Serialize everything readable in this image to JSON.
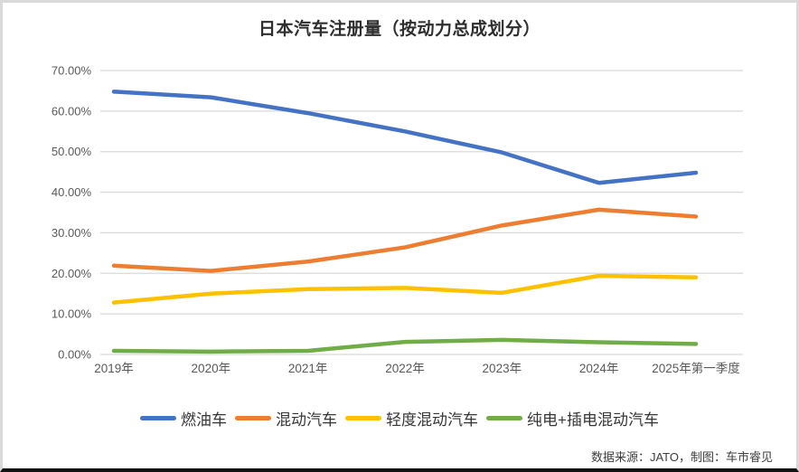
{
  "title": "日本汽车注册量（按动力总成划分）",
  "source_note": "数据来源：JATO，制图：车市睿见",
  "colors": {
    "grid": "#d9d9d9",
    "axis_text": "#595959",
    "title_text": "#2e2e2e",
    "frame_border": "#d9d9d9",
    "bottom_bar": "#111111"
  },
  "chart_data": {
    "type": "line",
    "title": "日本汽车注册量（按动力总成划分）",
    "categories": [
      "2019年",
      "2020年",
      "2021年",
      "2022年",
      "2023年",
      "2024年",
      "2025年第一季度"
    ],
    "series": [
      {
        "name": "燃油车",
        "color": "#4472C4",
        "values": [
          64.8,
          63.4,
          59.5,
          55.0,
          49.8,
          42.3,
          44.8
        ]
      },
      {
        "name": "混动汽车",
        "color": "#ED7D31",
        "values": [
          21.9,
          20.6,
          22.9,
          26.4,
          31.8,
          35.7,
          34.0
        ]
      },
      {
        "name": "轻度混动汽车",
        "color": "#FFC000",
        "values": [
          12.8,
          15.0,
          16.1,
          16.4,
          15.2,
          19.4,
          19.0
        ]
      },
      {
        "name": "纯电+插电混动汽车",
        "color": "#70AD47",
        "values": [
          0.9,
          0.7,
          0.9,
          3.1,
          3.6,
          3.0,
          2.6
        ]
      }
    ],
    "ylim": [
      0,
      70
    ],
    "ytick_step": 10,
    "yticks": [
      "0.00%",
      "10.00%",
      "20.00%",
      "30.00%",
      "40.00%",
      "50.00%",
      "60.00%",
      "70.00%"
    ],
    "xlabel": "",
    "ylabel": "",
    "grid": "horizontal",
    "legend_position": "bottom"
  }
}
